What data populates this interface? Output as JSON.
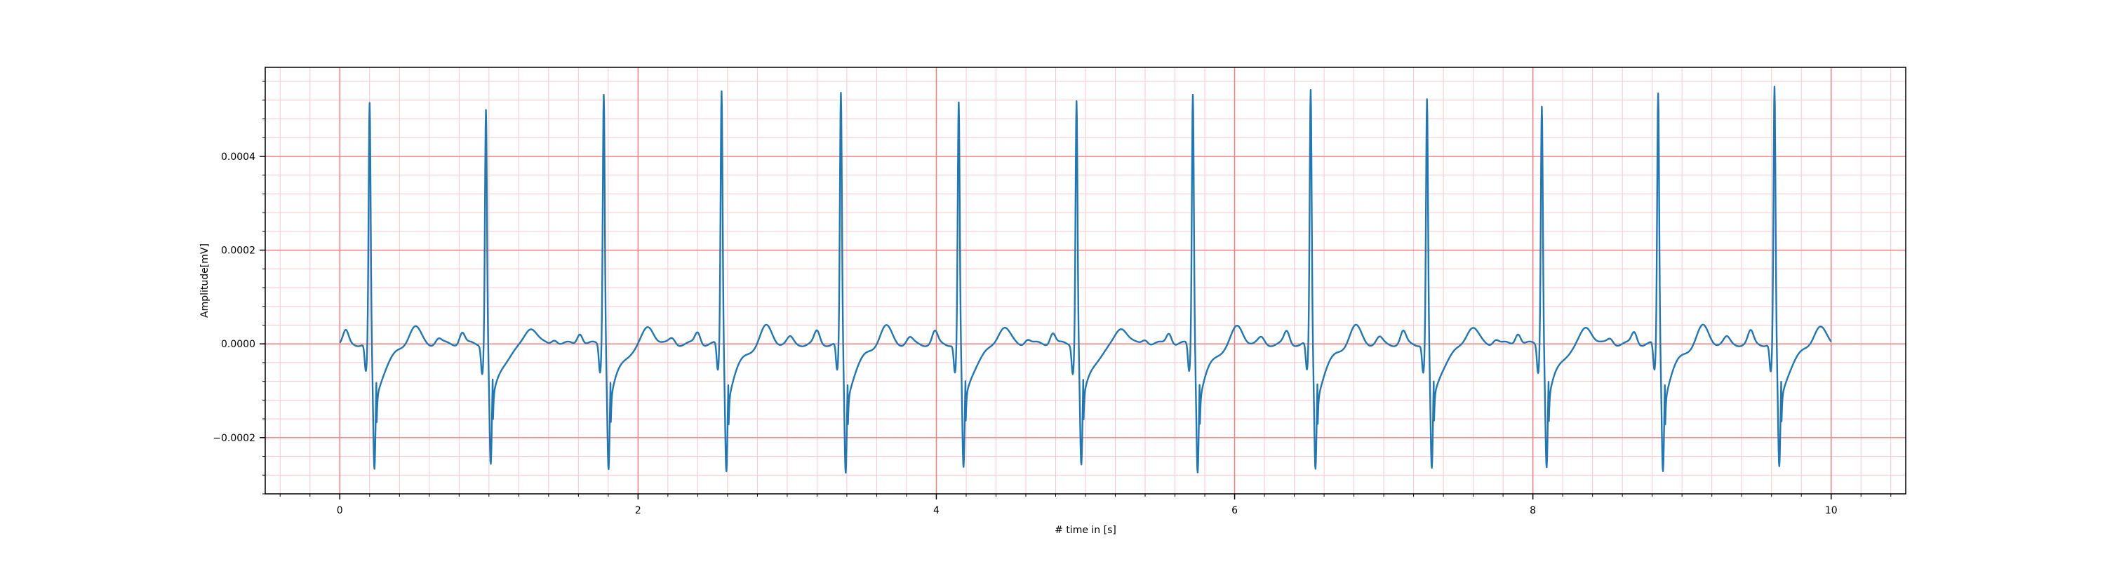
{
  "chart_data": {
    "type": "line",
    "title": "",
    "xlabel": "# time in [s]",
    "ylabel": "Amplitude[mV]",
    "xlim": [
      -0.5,
      10.5
    ],
    "ylim": [
      -0.00032,
      0.00059
    ],
    "x_ticks": [
      0,
      2,
      4,
      6,
      8,
      10
    ],
    "x_tick_labels": [
      "0",
      "2",
      "4",
      "6",
      "8",
      "10"
    ],
    "y_ticks": [
      -0.0002,
      0.0,
      0.0002,
      0.0004
    ],
    "y_tick_labels": [
      "−0.0002",
      "0.0000",
      "0.0002",
      "0.0004"
    ],
    "x_minor_step": 0.2,
    "y_minor_step": 4e-05,
    "grid": true,
    "grid_major_color": "#f08080",
    "grid_minor_color": "#f7c8cc",
    "line_color": "#1f77b4",
    "series": [
      {
        "beats": [
          {
            "r_time": 0.2,
            "r_peak": 0.00051,
            "s_trough": -0.00027
          },
          {
            "r_time": 0.98,
            "r_peak": 0.000502,
            "s_trough": -0.00026
          },
          {
            "r_time": 1.77,
            "r_peak": 0.000537,
            "s_trough": -0.000265
          },
          {
            "r_time": 2.56,
            "r_peak": 0.000539,
            "s_trough": -0.000268
          },
          {
            "r_time": 3.36,
            "r_peak": 0.000532,
            "s_trough": -0.000275
          },
          {
            "r_time": 4.15,
            "r_peak": 0.000513,
            "s_trough": -0.000268
          },
          {
            "r_time": 4.94,
            "r_peak": 0.000522,
            "s_trough": -0.00026
          },
          {
            "r_time": 5.72,
            "r_peak": 0.000535,
            "s_trough": -0.00027
          },
          {
            "r_time": 6.51,
            "r_peak": 0.000539,
            "s_trough": -0.000265
          },
          {
            "r_time": 7.29,
            "r_peak": 0.00052,
            "s_trough": -0.00027
          },
          {
            "r_time": 8.06,
            "r_peak": 0.000512,
            "s_trough": -0.000262
          },
          {
            "r_time": 8.84,
            "r_peak": 0.000534,
            "s_trough": -0.000268
          },
          {
            "r_time": 9.62,
            "r_peak": 0.000545,
            "s_trough": -0.000265
          }
        ],
        "t_start": 0.0,
        "t_end": 10.0
      }
    ]
  }
}
